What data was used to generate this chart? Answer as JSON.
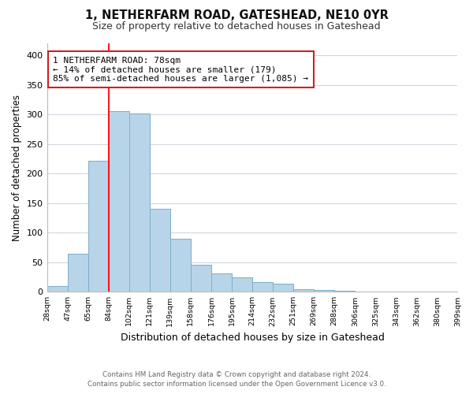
{
  "title": "1, NETHERFARM ROAD, GATESHEAD, NE10 0YR",
  "subtitle": "Size of property relative to detached houses in Gateshead",
  "xlabel": "Distribution of detached houses by size in Gateshead",
  "ylabel": "Number of detached properties",
  "bar_color": "#b8d4e8",
  "bar_edge_color": "#7aafc8",
  "bins": [
    "28sqm",
    "47sqm",
    "65sqm",
    "84sqm",
    "102sqm",
    "121sqm",
    "139sqm",
    "158sqm",
    "176sqm",
    "195sqm",
    "214sqm",
    "232sqm",
    "251sqm",
    "269sqm",
    "288sqm",
    "306sqm",
    "325sqm",
    "343sqm",
    "362sqm",
    "380sqm",
    "399sqm"
  ],
  "values": [
    10,
    65,
    222,
    305,
    302,
    140,
    90,
    46,
    31,
    24,
    17,
    14,
    5,
    3,
    2,
    1,
    1,
    1,
    1,
    1
  ],
  "ylim": [
    0,
    420
  ],
  "yticks": [
    0,
    50,
    100,
    150,
    200,
    250,
    300,
    350,
    400
  ],
  "property_line_x": 3,
  "annotation_title": "1 NETHERFARM ROAD: 78sqm",
  "annotation_line1": "← 14% of detached houses are smaller (179)",
  "annotation_line2": "85% of semi-detached houses are larger (1,085) →",
  "footer_line1": "Contains HM Land Registry data © Crown copyright and database right 2024.",
  "footer_line2": "Contains public sector information licensed under the Open Government Licence v3.0.",
  "background_color": "#ffffff",
  "grid_color": "#d0d8e0"
}
